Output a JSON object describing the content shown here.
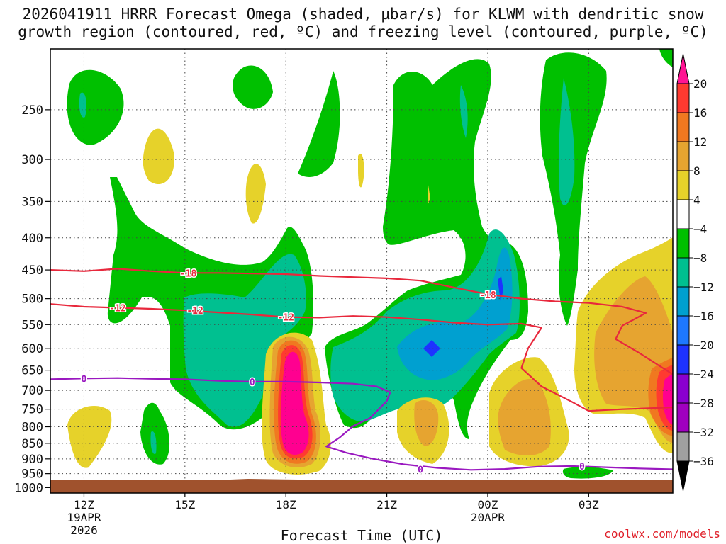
{
  "title_line1": "2026041911 HRRR Forecast Omega (shaded, µbar/s) for KLWM with dendritic snow",
  "title_line2": "growth region (contoured, red, ºC) and freezing level (contoured, purple, ºC)",
  "credit": "coolwx.com/models",
  "chart_data": {
    "type": "heatmap",
    "title": "2026041911 HRRR Forecast Omega (shaded, µbar/s) for KLWM with dendritic snow growth region (contoured, red, ºC) and freezing level (contoured, purple, ºC)",
    "xlabel": "Forecast Time (UTC)",
    "ylabel": "",
    "x_range_hours": [
      -1,
      17.5
    ],
    "y_log_pressure": true,
    "ylim": [
      1020,
      200
    ],
    "grid": true,
    "x_ticks": [
      {
        "hour": 0,
        "label": "12Z",
        "sub1": "19APR",
        "sub2": "2026"
      },
      {
        "hour": 3,
        "label": "15Z",
        "sub1": "",
        "sub2": ""
      },
      {
        "hour": 6,
        "label": "18Z",
        "sub1": "",
        "sub2": ""
      },
      {
        "hour": 9,
        "label": "21Z",
        "sub1": "",
        "sub2": ""
      },
      {
        "hour": 12,
        "label": "00Z",
        "sub1": "20APR",
        "sub2": ""
      },
      {
        "hour": 15,
        "label": "03Z",
        "sub1": "",
        "sub2": ""
      }
    ],
    "y_ticks": [
      250,
      300,
      350,
      400,
      450,
      500,
      550,
      600,
      650,
      700,
      750,
      800,
      850,
      900,
      950,
      1000
    ],
    "colorbar": {
      "labels": [
        "20",
        "16",
        "12",
        "8",
        "4",
        "−4",
        "−8",
        "−12",
        "−16",
        "−20",
        "−24",
        "−28",
        "−32",
        "−36"
      ],
      "colors": [
        "#ff0090",
        "#ff3a30",
        "#f07820",
        "#e6a430",
        "#e6d22a",
        "#ffffff",
        "#00c000",
        "#00c090",
        "#00a0d0",
        "#1e78ff",
        "#1e32ff",
        "#8a00d0",
        "#a000c0",
        "#a0a0a0",
        "#000000"
      ],
      "top_color": "#ff1493",
      "bottom_color": "#000000"
    },
    "contours": [
      {
        "name": "dendritic snow growth -18",
        "color": "#e8283c",
        "label": "-18",
        "points": [
          [
            -1,
            450
          ],
          [
            0,
            452
          ],
          [
            1,
            448
          ],
          [
            2,
            452
          ],
          [
            3,
            455
          ],
          [
            4,
            455
          ],
          [
            5,
            456
          ],
          [
            6,
            457
          ],
          [
            7,
            460
          ],
          [
            8,
            462
          ],
          [
            9,
            464
          ],
          [
            10,
            468
          ],
          [
            11,
            480
          ],
          [
            12,
            492
          ],
          [
            13,
            500
          ],
          [
            14,
            505
          ],
          [
            15,
            508
          ],
          [
            16,
            515
          ],
          [
            16.7,
            527
          ],
          [
            16,
            552
          ],
          [
            15.8,
            580
          ],
          [
            16.5,
            610
          ],
          [
            17.5,
            660
          ]
        ],
        "label_at": [
          3.1,
          455
        ]
      },
      {
        "name": "dendritic snow growth -12",
        "color": "#e8283c",
        "label": "-12",
        "points": [
          [
            -1,
            510
          ],
          [
            0,
            515
          ],
          [
            1,
            517
          ],
          [
            2,
            519
          ],
          [
            3,
            522
          ],
          [
            4,
            526
          ],
          [
            5,
            530
          ],
          [
            6,
            535
          ],
          [
            7,
            536
          ],
          [
            8,
            533
          ],
          [
            9,
            535
          ],
          [
            10,
            540
          ],
          [
            11,
            546
          ],
          [
            12,
            550
          ],
          [
            13,
            548
          ],
          [
            13.6,
            556
          ],
          [
            13.2,
            600
          ],
          [
            13,
            645
          ],
          [
            13.6,
            690
          ],
          [
            14.5,
            730
          ],
          [
            15,
            755
          ],
          [
            16,
            750
          ],
          [
            17.5,
            745
          ]
        ],
        "label_at": [
          1.0,
          517
        ]
      },
      {
        "name": "freezing level 0",
        "color": "#9a18c0",
        "label": "0",
        "points": [
          [
            -1,
            672
          ],
          [
            0,
            670
          ],
          [
            1,
            669
          ],
          [
            2,
            671
          ],
          [
            3,
            672
          ],
          [
            4,
            676
          ],
          [
            5,
            678
          ],
          [
            6,
            678
          ],
          [
            7,
            680
          ],
          [
            8,
            683
          ],
          [
            8.7,
            690
          ],
          [
            9.1,
            705
          ],
          [
            9,
            728
          ],
          [
            8.5,
            775
          ],
          [
            8,
            798
          ],
          [
            7.6,
            832
          ],
          [
            7.2,
            860
          ],
          [
            7.8,
            880
          ],
          [
            8.6,
            900
          ],
          [
            9.5,
            918
          ],
          [
            10.5,
            930
          ],
          [
            11.5,
            937
          ],
          [
            12.5,
            934
          ],
          [
            13.5,
            926
          ],
          [
            14.5,
            924
          ],
          [
            15.5,
            928
          ],
          [
            16.5,
            932
          ],
          [
            17.5,
            935
          ]
        ],
        "label_at": [
          0.0,
          670
        ]
      }
    ]
  }
}
